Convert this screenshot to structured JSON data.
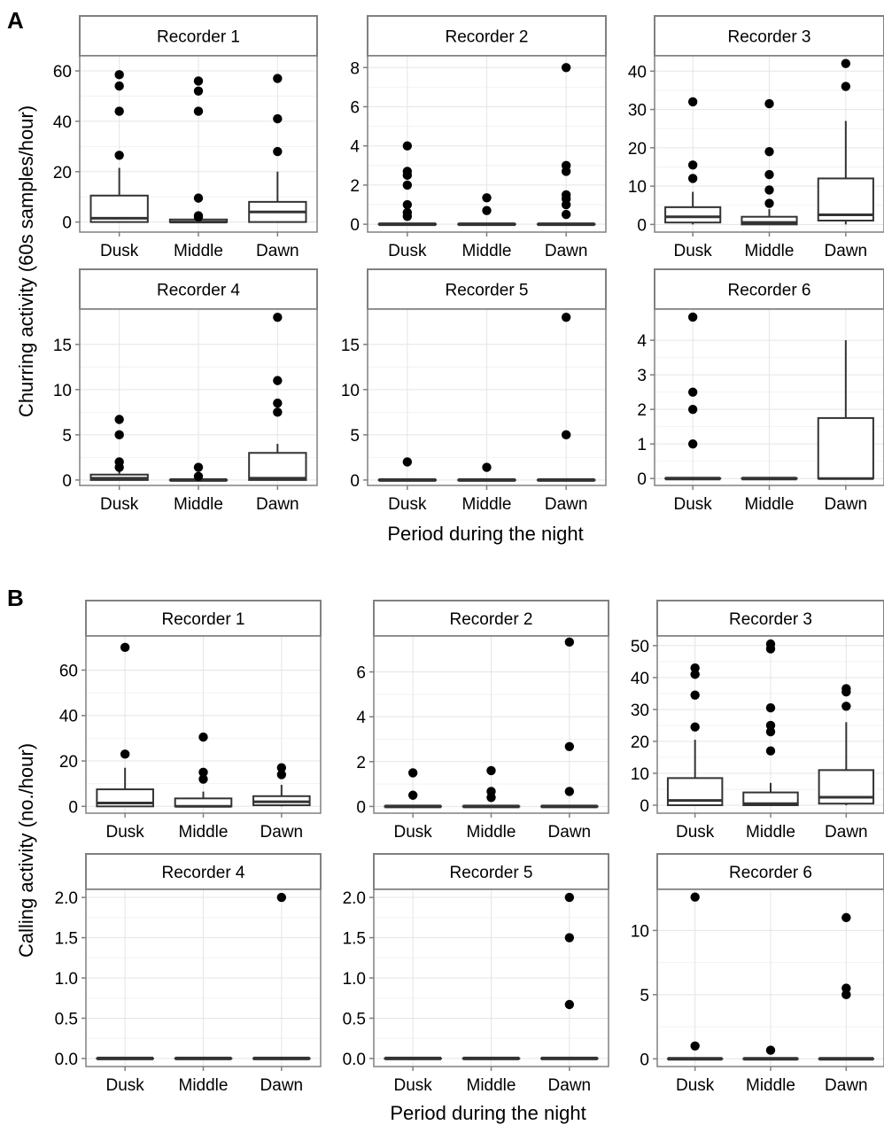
{
  "panel_a": {
    "label": "A",
    "ylabel": "Churring activity (60s samples/hour)",
    "xlabel": "Period during the night"
  },
  "panel_b": {
    "label": "B",
    "ylabel": "Calling activity (no./hour)",
    "xlabel": "Period during the night"
  },
  "colors": {
    "strip_fill": "#ffffff",
    "strip_border": "#808080",
    "grid_major": "#e5e5e5",
    "grid_minor": "#f2f2f2",
    "mark": "#000000",
    "box_line": "#333333"
  },
  "chart_data": [
    {
      "type": "box",
      "panel": "A",
      "facet": "Recorder 1",
      "categories": [
        "Dusk",
        "Middle",
        "Dawn"
      ],
      "yticks": [
        0,
        20,
        40,
        60
      ],
      "ylim": [
        -4,
        66
      ],
      "boxes": [
        {
          "q1": 0,
          "median": 1.5,
          "q3": 10.5,
          "whisker_low": 0,
          "whisker_high": 21.5,
          "outliers": [
            58.5,
            54,
            44,
            26.5
          ]
        },
        {
          "q1": 0,
          "median": 0,
          "q3": 1,
          "whisker_low": 0,
          "whisker_high": 1,
          "outliers": [
            56,
            52,
            44,
            9.5,
            2.5,
            2
          ]
        },
        {
          "q1": 0,
          "median": 4,
          "q3": 8,
          "whisker_low": 0,
          "whisker_high": 20,
          "outliers": [
            57,
            41,
            28
          ]
        }
      ]
    },
    {
      "type": "box",
      "panel": "A",
      "facet": "Recorder 2",
      "categories": [
        "Dusk",
        "Middle",
        "Dawn"
      ],
      "yticks": [
        0,
        2,
        4,
        6,
        8
      ],
      "ylim": [
        -0.4,
        8.6
      ],
      "boxes": [
        {
          "q1": 0,
          "median": 0,
          "q3": 0,
          "whisker_low": 0,
          "whisker_high": 0,
          "outliers": [
            4,
            2.7,
            2.5,
            2,
            1,
            0.6,
            0.4
          ]
        },
        {
          "q1": 0,
          "median": 0,
          "q3": 0,
          "whisker_low": 0,
          "whisker_high": 0,
          "outliers": [
            1.35,
            0.7
          ]
        },
        {
          "q1": 0,
          "median": 0,
          "q3": 0,
          "whisker_low": 0,
          "whisker_high": 0,
          "outliers": [
            8,
            3,
            2.7,
            1.5,
            1.3,
            1,
            0.5
          ]
        }
      ]
    },
    {
      "type": "box",
      "panel": "A",
      "facet": "Recorder 3",
      "categories": [
        "Dusk",
        "Middle",
        "Dawn"
      ],
      "yticks": [
        0,
        10,
        20,
        30,
        40
      ],
      "ylim": [
        -2,
        44
      ],
      "boxes": [
        {
          "q1": 0.5,
          "median": 2,
          "q3": 4.5,
          "whisker_low": 0,
          "whisker_high": 8.5,
          "outliers": [
            32,
            15.5,
            12
          ]
        },
        {
          "q1": 0,
          "median": 0.5,
          "q3": 2,
          "whisker_low": 0,
          "whisker_high": 4,
          "outliers": [
            31.5,
            19,
            13,
            9,
            5.5
          ]
        },
        {
          "q1": 1,
          "median": 2.5,
          "q3": 12,
          "whisker_low": 0,
          "whisker_high": 27,
          "outliers": [
            42,
            36
          ]
        }
      ]
    },
    {
      "type": "box",
      "panel": "A",
      "facet": "Recorder 4",
      "categories": [
        "Dusk",
        "Middle",
        "Dawn"
      ],
      "yticks": [
        0,
        5,
        10,
        15
      ],
      "ylim": [
        -0.6,
        18.9
      ],
      "boxes": [
        {
          "q1": 0,
          "median": 0.2,
          "q3": 0.6,
          "whisker_low": 0,
          "whisker_high": 1.2,
          "outliers": [
            6.7,
            5,
            2,
            1.4
          ]
        },
        {
          "q1": 0,
          "median": 0,
          "q3": 0,
          "whisker_low": 0,
          "whisker_high": 0,
          "outliers": [
            1.4,
            0.4
          ]
        },
        {
          "q1": 0,
          "median": 0.2,
          "q3": 3,
          "whisker_low": 0,
          "whisker_high": 4,
          "outliers": [
            18,
            11,
            8.5,
            7.5
          ]
        }
      ]
    },
    {
      "type": "box",
      "panel": "A",
      "facet": "Recorder 5",
      "categories": [
        "Dusk",
        "Middle",
        "Dawn"
      ],
      "yticks": [
        0,
        5,
        10,
        15
      ],
      "ylim": [
        -0.6,
        18.9
      ],
      "boxes": [
        {
          "q1": 0,
          "median": 0,
          "q3": 0,
          "whisker_low": 0,
          "whisker_high": 0,
          "outliers": [
            2
          ]
        },
        {
          "q1": 0,
          "median": 0,
          "q3": 0,
          "whisker_low": 0,
          "whisker_high": 0,
          "outliers": [
            1.4
          ]
        },
        {
          "q1": 0,
          "median": 0,
          "q3": 0,
          "whisker_low": 0,
          "whisker_high": 0,
          "outliers": [
            18,
            5
          ]
        }
      ]
    },
    {
      "type": "box",
      "panel": "A",
      "facet": "Recorder 6",
      "categories": [
        "Dusk",
        "Middle",
        "Dawn"
      ],
      "yticks": [
        0,
        1,
        2,
        3,
        4
      ],
      "ylim": [
        -0.2,
        4.9
      ],
      "boxes": [
        {
          "q1": 0,
          "median": 0,
          "q3": 0,
          "whisker_low": 0,
          "whisker_high": 0,
          "outliers": [
            4.67,
            2.5,
            2,
            1
          ]
        },
        {
          "q1": 0,
          "median": 0,
          "q3": 0,
          "whisker_low": 0,
          "whisker_high": 0,
          "outliers": []
        },
        {
          "q1": 0,
          "median": 0,
          "q3": 1.75,
          "whisker_low": 0,
          "whisker_high": 4,
          "outliers": []
        }
      ]
    },
    {
      "type": "box",
      "panel": "B",
      "facet": "Recorder 1",
      "categories": [
        "Dusk",
        "Middle",
        "Dawn"
      ],
      "yticks": [
        0,
        20,
        40,
        60
      ],
      "ylim": [
        -3,
        75
      ],
      "boxes": [
        {
          "q1": 0,
          "median": 1.5,
          "q3": 7.5,
          "whisker_low": 0,
          "whisker_high": 17,
          "outliers": [
            70,
            23
          ]
        },
        {
          "q1": 0,
          "median": 0,
          "q3": 3.5,
          "whisker_low": 0,
          "whisker_high": 6.5,
          "outliers": [
            30.5,
            15,
            12
          ]
        },
        {
          "q1": 0.5,
          "median": 2,
          "q3": 4.5,
          "whisker_low": 0,
          "whisker_high": 9.5,
          "outliers": [
            17,
            14
          ]
        }
      ]
    },
    {
      "type": "box",
      "panel": "B",
      "facet": "Recorder 2",
      "categories": [
        "Dusk",
        "Middle",
        "Dawn"
      ],
      "yticks": [
        0,
        2,
        4,
        6
      ],
      "ylim": [
        -0.3,
        7.6
      ],
      "boxes": [
        {
          "q1": 0,
          "median": 0,
          "q3": 0,
          "whisker_low": 0,
          "whisker_high": 0,
          "outliers": [
            1.5,
            0.5
          ]
        },
        {
          "q1": 0,
          "median": 0,
          "q3": 0,
          "whisker_low": 0,
          "whisker_high": 0,
          "outliers": [
            1.6,
            0.67,
            0.4
          ]
        },
        {
          "q1": 0,
          "median": 0,
          "q3": 0,
          "whisker_low": 0,
          "whisker_high": 0,
          "outliers": [
            7.33,
            2.67,
            0.67
          ]
        }
      ]
    },
    {
      "type": "box",
      "panel": "B",
      "facet": "Recorder 3",
      "categories": [
        "Dusk",
        "Middle",
        "Dawn"
      ],
      "yticks": [
        0,
        10,
        20,
        30,
        40,
        50
      ],
      "ylim": [
        -2.5,
        53
      ],
      "boxes": [
        {
          "q1": 0,
          "median": 1.5,
          "q3": 8.5,
          "whisker_low": 0,
          "whisker_high": 20.5,
          "outliers": [
            43,
            41,
            34.5,
            24.5
          ]
        },
        {
          "q1": 0,
          "median": 0.5,
          "q3": 4,
          "whisker_low": 0,
          "whisker_high": 7,
          "outliers": [
            50.5,
            49,
            30.5,
            25,
            23,
            17
          ]
        },
        {
          "q1": 0.5,
          "median": 2.5,
          "q3": 11,
          "whisker_low": 0,
          "whisker_high": 26,
          "outliers": [
            36.5,
            35.5,
            31
          ]
        }
      ]
    },
    {
      "type": "box",
      "panel": "B",
      "facet": "Recorder 4",
      "categories": [
        "Dusk",
        "Middle",
        "Dawn"
      ],
      "yticks": [
        0.0,
        0.5,
        1.0,
        1.5,
        2.0
      ],
      "ylim": [
        -0.1,
        2.1
      ],
      "tick_labels": [
        "0.0",
        "0.5",
        "1.0",
        "1.5",
        "2.0"
      ],
      "boxes": [
        {
          "q1": 0,
          "median": 0,
          "q3": 0,
          "whisker_low": 0,
          "whisker_high": 0,
          "outliers": []
        },
        {
          "q1": 0,
          "median": 0,
          "q3": 0,
          "whisker_low": 0,
          "whisker_high": 0,
          "outliers": []
        },
        {
          "q1": 0,
          "median": 0,
          "q3": 0,
          "whisker_low": 0,
          "whisker_high": 0,
          "outliers": [
            2
          ]
        }
      ]
    },
    {
      "type": "box",
      "panel": "B",
      "facet": "Recorder 5",
      "categories": [
        "Dusk",
        "Middle",
        "Dawn"
      ],
      "yticks": [
        0.0,
        0.5,
        1.0,
        1.5,
        2.0
      ],
      "ylim": [
        -0.1,
        2.1
      ],
      "tick_labels": [
        "0.0",
        "0.5",
        "1.0",
        "1.5",
        "2.0"
      ],
      "boxes": [
        {
          "q1": 0,
          "median": 0,
          "q3": 0,
          "whisker_low": 0,
          "whisker_high": 0,
          "outliers": []
        },
        {
          "q1": 0,
          "median": 0,
          "q3": 0,
          "whisker_low": 0,
          "whisker_high": 0,
          "outliers": []
        },
        {
          "q1": 0,
          "median": 0,
          "q3": 0,
          "whisker_low": 0,
          "whisker_high": 0,
          "outliers": [
            2,
            1.5,
            0.67
          ]
        }
      ]
    },
    {
      "type": "box",
      "panel": "B",
      "facet": "Recorder 6",
      "categories": [
        "Dusk",
        "Middle",
        "Dawn"
      ],
      "yticks": [
        0,
        5,
        10
      ],
      "ylim": [
        -0.6,
        13.2
      ],
      "boxes": [
        {
          "q1": 0,
          "median": 0,
          "q3": 0,
          "whisker_low": 0,
          "whisker_high": 0,
          "outliers": [
            12.6,
            1
          ]
        },
        {
          "q1": 0,
          "median": 0,
          "q3": 0,
          "whisker_low": 0,
          "whisker_high": 0,
          "outliers": [
            0.67
          ]
        },
        {
          "q1": 0,
          "median": 0,
          "q3": 0,
          "whisker_low": 0,
          "whisker_high": 0,
          "outliers": [
            11,
            5.5,
            5
          ]
        }
      ]
    }
  ]
}
